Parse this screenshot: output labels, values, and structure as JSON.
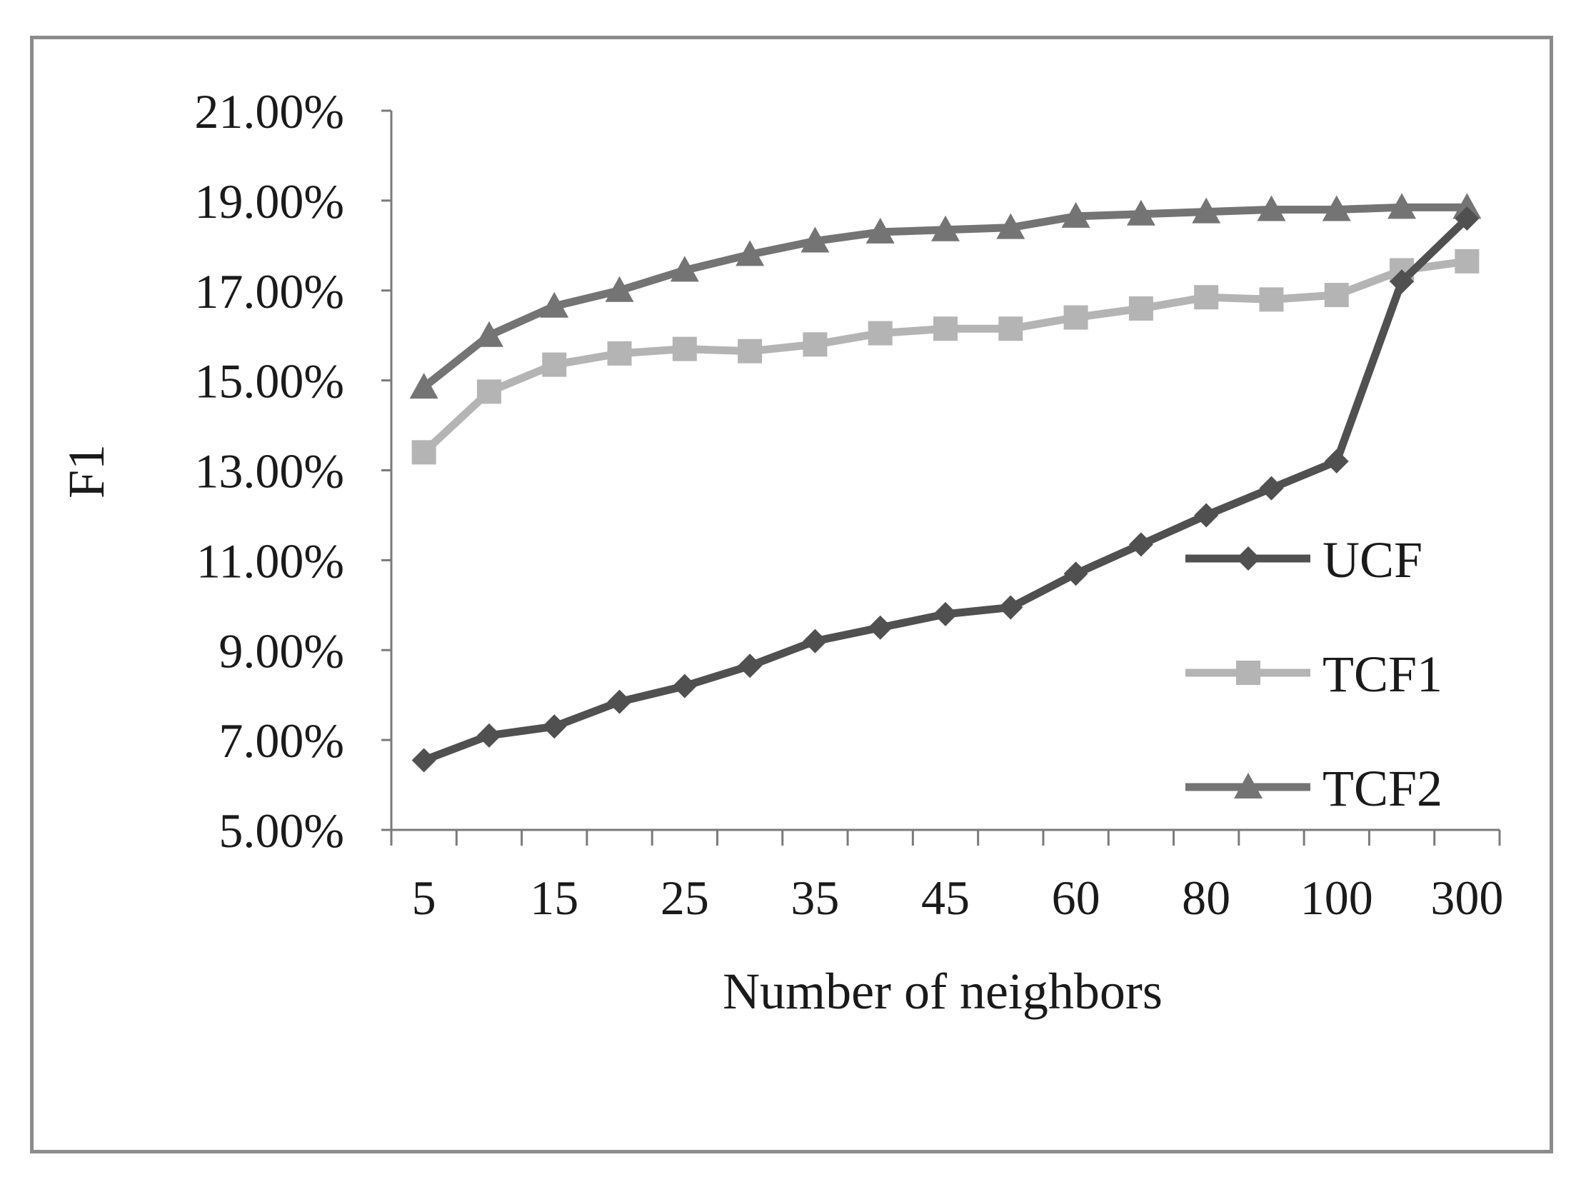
{
  "chart_data": {
    "type": "line",
    "title": "",
    "xlabel": "Number of neighbors",
    "ylabel": "F1",
    "ylim": [
      5,
      21
    ],
    "yticks": [
      "5.00%",
      "7.00%",
      "9.00%",
      "11.00%",
      "13.00%",
      "15.00%",
      "17.00%",
      "19.00%",
      "21.00%"
    ],
    "ytick_values": [
      5,
      7,
      9,
      11,
      13,
      15,
      17,
      19,
      21
    ],
    "x": [
      5,
      10,
      15,
      20,
      25,
      30,
      35,
      40,
      45,
      50,
      60,
      70,
      80,
      90,
      100,
      200,
      300
    ],
    "xtick_labels": [
      "5",
      "15",
      "25",
      "35",
      "45",
      "60",
      "80",
      "100",
      "300"
    ],
    "xtick_label_indices": [
      0,
      2,
      4,
      6,
      8,
      10,
      12,
      14,
      16
    ],
    "legend_position": "right-center",
    "series": [
      {
        "name": "UCF",
        "marker": "diamond",
        "color": "#505050",
        "values": [
          6.55,
          7.1,
          7.3,
          7.85,
          8.2,
          8.65,
          9.2,
          9.5,
          9.8,
          9.95,
          10.7,
          11.35,
          12.0,
          12.6,
          13.2,
          17.2,
          18.6
        ]
      },
      {
        "name": "TCF1",
        "marker": "square",
        "color": "#b4b4b4",
        "values": [
          13.4,
          14.75,
          15.35,
          15.6,
          15.7,
          15.65,
          15.8,
          16.05,
          16.15,
          16.15,
          16.4,
          16.6,
          16.85,
          16.8,
          16.9,
          17.45,
          17.65
        ]
      },
      {
        "name": "TCF2",
        "marker": "triangle",
        "color": "#747474",
        "values": [
          14.85,
          16.0,
          16.65,
          17.0,
          17.45,
          17.8,
          18.1,
          18.3,
          18.35,
          18.4,
          18.65,
          18.7,
          18.75,
          18.8,
          18.8,
          18.85,
          18.85
        ]
      }
    ]
  }
}
